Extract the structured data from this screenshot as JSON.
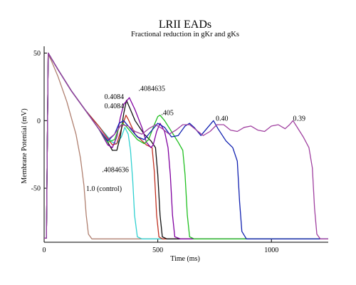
{
  "chart_data": {
    "type": "line",
    "title": "LRII EADs",
    "subtitle": "Fractional reduction in gKr and gKs",
    "xlabel": "Time (ms)",
    "ylabel": "Membrane Potential (mV)",
    "xlim": [
      0,
      1250
    ],
    "ylim": [
      -90,
      55
    ],
    "xticks": [
      0,
      500,
      1000
    ],
    "yticks": [
      50,
      0,
      -50
    ],
    "grid": false,
    "series": [
      {
        "name": "1.0 (control)",
        "color": "#b08070",
        "points": [
          [
            0,
            -87
          ],
          [
            10,
            -87
          ],
          [
            18,
            49
          ],
          [
            30,
            45
          ],
          [
            60,
            33
          ],
          [
            100,
            14
          ],
          [
            140,
            -10
          ],
          [
            160,
            -28
          ],
          [
            175,
            -48
          ],
          [
            185,
            -70
          ],
          [
            195,
            -84
          ],
          [
            210,
            -87.5
          ],
          [
            1250,
            -87.5
          ]
        ]
      },
      {
        "name": ".4084636",
        "color": "#30d0d0",
        "points": [
          [
            0,
            -87
          ],
          [
            10,
            -87
          ],
          [
            18,
            50
          ],
          [
            60,
            38
          ],
          [
            120,
            22
          ],
          [
            180,
            8
          ],
          [
            240,
            -4
          ],
          [
            280,
            -12
          ],
          [
            300,
            -16
          ],
          [
            320,
            -17
          ],
          [
            340,
            -12
          ],
          [
            355,
            -5
          ],
          [
            370,
            -10
          ],
          [
            380,
            -22
          ],
          [
            390,
            -45
          ],
          [
            398,
            -70
          ],
          [
            410,
            -86
          ],
          [
            430,
            -87.5
          ],
          [
            1250,
            -87.5
          ]
        ]
      },
      {
        "name": "0.4084 (a)",
        "color": "#c03020",
        "points": [
          [
            0,
            -87
          ],
          [
            10,
            -87
          ],
          [
            18,
            50
          ],
          [
            60,
            38
          ],
          [
            120,
            22
          ],
          [
            180,
            8
          ],
          [
            240,
            -4
          ],
          [
            280,
            -13
          ],
          [
            300,
            -18
          ],
          [
            320,
            -17
          ],
          [
            340,
            -6
          ],
          [
            360,
            4
          ],
          [
            370,
            1
          ],
          [
            400,
            -10
          ],
          [
            450,
            -18
          ],
          [
            475,
            -20
          ],
          [
            485,
            -38
          ],
          [
            495,
            -70
          ],
          [
            505,
            -86
          ],
          [
            520,
            -87.5
          ],
          [
            1250,
            -87.5
          ]
        ]
      },
      {
        "name": "0.4084 (b)",
        "color": "#101010",
        "points": [
          [
            0,
            -87
          ],
          [
            10,
            -87
          ],
          [
            18,
            50
          ],
          [
            60,
            38
          ],
          [
            120,
            22
          ],
          [
            180,
            8
          ],
          [
            240,
            -6
          ],
          [
            280,
            -16
          ],
          [
            300,
            -22
          ],
          [
            320,
            -22
          ],
          [
            335,
            -12
          ],
          [
            350,
            5
          ],
          [
            362,
            15
          ],
          [
            375,
            10
          ],
          [
            400,
            0
          ],
          [
            440,
            -10
          ],
          [
            470,
            -15
          ],
          [
            490,
            -20
          ],
          [
            500,
            -40
          ],
          [
            510,
            -70
          ],
          [
            520,
            -86
          ],
          [
            540,
            -87.5
          ],
          [
            1250,
            -87.5
          ]
        ]
      },
      {
        "name": ".4084635",
        "color": "#8000a0",
        "points": [
          [
            0,
            -87
          ],
          [
            10,
            -87
          ],
          [
            18,
            50
          ],
          [
            60,
            38
          ],
          [
            120,
            22
          ],
          [
            180,
            8
          ],
          [
            240,
            -6
          ],
          [
            280,
            -18
          ],
          [
            300,
            -20
          ],
          [
            320,
            -12
          ],
          [
            335,
            2
          ],
          [
            350,
            12
          ],
          [
            375,
            17
          ],
          [
            400,
            8
          ],
          [
            430,
            -5
          ],
          [
            450,
            -16
          ],
          [
            470,
            -20
          ],
          [
            480,
            -18
          ],
          [
            495,
            -8
          ],
          [
            510,
            -2
          ],
          [
            530,
            -8
          ],
          [
            545,
            -20
          ],
          [
            555,
            -40
          ],
          [
            565,
            -70
          ],
          [
            575,
            -86
          ],
          [
            600,
            -87.5
          ],
          [
            1250,
            -87.5
          ]
        ]
      },
      {
        "name": ".405",
        "color": "#20c020",
        "points": [
          [
            0,
            -87
          ],
          [
            10,
            -87
          ],
          [
            18,
            50
          ],
          [
            60,
            38
          ],
          [
            120,
            22
          ],
          [
            180,
            8
          ],
          [
            240,
            -6
          ],
          [
            280,
            -16
          ],
          [
            310,
            -14
          ],
          [
            330,
            -5
          ],
          [
            345,
            -2
          ],
          [
            360,
            -4
          ],
          [
            380,
            -8
          ],
          [
            410,
            -14
          ],
          [
            440,
            -17
          ],
          [
            460,
            -14
          ],
          [
            480,
            -5
          ],
          [
            500,
            3
          ],
          [
            510,
            4
          ],
          [
            530,
            0
          ],
          [
            560,
            -8
          ],
          [
            590,
            -16
          ],
          [
            610,
            -22
          ],
          [
            620,
            -40
          ],
          [
            630,
            -70
          ],
          [
            640,
            -86
          ],
          [
            660,
            -87.5
          ],
          [
            1250,
            -87.5
          ]
        ]
      },
      {
        "name": "0.40",
        "color": "#1020b0",
        "points": [
          [
            0,
            -87
          ],
          [
            10,
            -87
          ],
          [
            18,
            50
          ],
          [
            60,
            38
          ],
          [
            120,
            22
          ],
          [
            180,
            8
          ],
          [
            240,
            -6
          ],
          [
            280,
            -15
          ],
          [
            310,
            -10
          ],
          [
            330,
            -2
          ],
          [
            350,
            0
          ],
          [
            380,
            -6
          ],
          [
            410,
            -12
          ],
          [
            440,
            -14
          ],
          [
            470,
            -8
          ],
          [
            500,
            -2
          ],
          [
            530,
            -5
          ],
          [
            560,
            -12
          ],
          [
            590,
            -11
          ],
          [
            620,
            -4
          ],
          [
            640,
            -2
          ],
          [
            660,
            -5
          ],
          [
            690,
            -11
          ],
          [
            720,
            -5
          ],
          [
            745,
            0
          ],
          [
            765,
            -6
          ],
          [
            800,
            -15
          ],
          [
            830,
            -20
          ],
          [
            850,
            -30
          ],
          [
            860,
            -60
          ],
          [
            870,
            -82
          ],
          [
            890,
            -87.5
          ],
          [
            1250,
            -87.5
          ]
        ]
      },
      {
        "name": "0.39",
        "color": "#a040a0",
        "points": [
          [
            0,
            -87
          ],
          [
            10,
            -87
          ],
          [
            18,
            50
          ],
          [
            60,
            38
          ],
          [
            120,
            22
          ],
          [
            180,
            8
          ],
          [
            240,
            -6
          ],
          [
            280,
            -14
          ],
          [
            310,
            -10
          ],
          [
            340,
            -3
          ],
          [
            370,
            -4
          ],
          [
            400,
            -8
          ],
          [
            430,
            -10
          ],
          [
            460,
            -6
          ],
          [
            490,
            -3
          ],
          [
            520,
            -6
          ],
          [
            550,
            -10
          ],
          [
            580,
            -7
          ],
          [
            610,
            -3
          ],
          [
            640,
            -3
          ],
          [
            670,
            -7
          ],
          [
            700,
            -11
          ],
          [
            730,
            -8
          ],
          [
            760,
            -3
          ],
          [
            790,
            -3
          ],
          [
            820,
            -7
          ],
          [
            850,
            -8
          ],
          [
            880,
            -5
          ],
          [
            910,
            -4
          ],
          [
            940,
            -7
          ],
          [
            970,
            -8
          ],
          [
            1000,
            -4
          ],
          [
            1030,
            -3
          ],
          [
            1060,
            -6
          ],
          [
            1080,
            -3
          ],
          [
            1095,
            0
          ],
          [
            1110,
            -4
          ],
          [
            1140,
            -12
          ],
          [
            1165,
            -20
          ],
          [
            1180,
            -35
          ],
          [
            1190,
            -65
          ],
          [
            1200,
            -84
          ],
          [
            1215,
            -87.5
          ],
          [
            1250,
            -87.5
          ]
        ]
      }
    ],
    "annotations": [
      {
        "text": "0.4084",
        "x": 265,
        "y": 16
      },
      {
        "text": "0.4084",
        "x": 265,
        "y": 9
      },
      {
        "text": ".4084635",
        "x": 415,
        "y": 22
      },
      {
        "text": ".405",
        "x": 515,
        "y": 4
      },
      {
        "text": "0.40",
        "x": 755,
        "y": 0
      },
      {
        "text": "0.39",
        "x": 1095,
        "y": 0
      },
      {
        "text": ".4084636",
        "x": 255,
        "y": -38
      },
      {
        "text": "1.0 (control)",
        "x": 185,
        "y": -52
      }
    ]
  }
}
